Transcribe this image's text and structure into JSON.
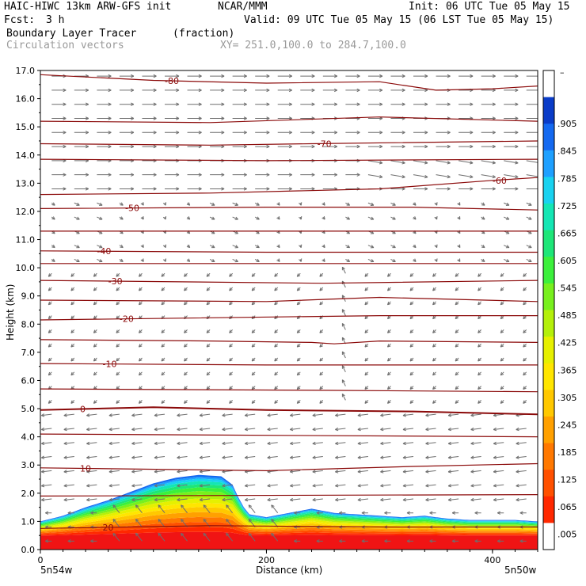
{
  "header": {
    "model": "HAIC-HIWC 13km ARW-GFS init",
    "org": "NCAR/MMM",
    "init": "Init: 06 UTC Tue 05 May 15",
    "fcst_label": "Fcst:",
    "fcst_value": "3 h",
    "valid": "Valid: 09 UTC Tue 05 May 15 (06 LST Tue 05 May 15)",
    "field": "Boundary Layer Tracer",
    "field_units": "(fraction)",
    "overlay": "Circulation vectors",
    "xy": "XY= 251.0,100.0 to 284.7,100.0"
  },
  "chart_data": {
    "type": "heatmap",
    "description_overlays": [
      "contour",
      "vector"
    ],
    "ylabel": "Height (km)",
    "xlabel": "Distance (km)",
    "xlim": [
      0,
      440
    ],
    "ylim": [
      0,
      17
    ],
    "x_ticks": [
      "0",
      "200",
      "400"
    ],
    "y_ticks": [
      "0.0",
      "1.0",
      "2.0",
      "3.0",
      "4.0",
      "5.0",
      "6.0",
      "7.0",
      "8.0",
      "9.0",
      "10.0",
      "11.0",
      "12.0",
      "13.0",
      "14.0",
      "15.0",
      "16.0",
      "17.0"
    ],
    "x_left_label": "5n54w",
    "x_right_label": "5n50w",
    "colorbar_labels": [
      ".005",
      ".065",
      ".125",
      ".185",
      ".245",
      ".305",
      ".365",
      ".425",
      ".485",
      ".545",
      ".605",
      ".665",
      ".725",
      ".785",
      ".845",
      ".905"
    ],
    "colorbar_top_label": "–",
    "colorbar_colors": [
      "#0a3cc8",
      "#1469f0",
      "#1ea0ff",
      "#19d2f0",
      "#14e6b4",
      "#1ee678",
      "#3cf03c",
      "#78f01e",
      "#b4f00a",
      "#e6f000",
      "#ffe600",
      "#ffc800",
      "#ffa000",
      "#ff7800",
      "#ff5000",
      "#ff2800",
      "#f01414"
    ],
    "tracer_top_km": [
      [
        0,
        1.0
      ],
      [
        20,
        1.2
      ],
      [
        40,
        1.5
      ],
      [
        60,
        1.75
      ],
      [
        80,
        2.05
      ],
      [
        100,
        2.35
      ],
      [
        120,
        2.55
      ],
      [
        140,
        2.65
      ],
      [
        160,
        2.6
      ],
      [
        170,
        2.3
      ],
      [
        178,
        1.6
      ],
      [
        185,
        1.25
      ],
      [
        200,
        1.15
      ],
      [
        220,
        1.3
      ],
      [
        240,
        1.45
      ],
      [
        260,
        1.3
      ],
      [
        280,
        1.25
      ],
      [
        300,
        1.2
      ],
      [
        320,
        1.15
      ],
      [
        340,
        1.2
      ],
      [
        360,
        1.1
      ],
      [
        380,
        1.05
      ],
      [
        400,
        1.05
      ],
      [
        420,
        1.05
      ],
      [
        440,
        1.0
      ]
    ],
    "contour_lines": [
      {
        "label": "-80",
        "label_x": 110,
        "y": [
          [
            0,
            16.85
          ],
          [
            100,
            16.65
          ],
          [
            200,
            16.55
          ],
          [
            300,
            16.6
          ],
          [
            350,
            16.3
          ],
          [
            400,
            16.35
          ],
          [
            440,
            16.45
          ]
        ]
      },
      {
        "label": "",
        "label_x": 0,
        "y": [
          [
            0,
            15.2
          ],
          [
            150,
            15.15
          ],
          [
            300,
            15.35
          ],
          [
            440,
            15.2
          ]
        ]
      },
      {
        "label": "-70",
        "label_x": 245,
        "y": [
          [
            0,
            14.4
          ],
          [
            150,
            14.35
          ],
          [
            240,
            14.4
          ],
          [
            440,
            14.5
          ]
        ]
      },
      {
        "label": "",
        "label_x": 0,
        "y": [
          [
            0,
            13.85
          ],
          [
            200,
            13.8
          ],
          [
            440,
            13.85
          ]
        ]
      },
      {
        "label": "-60",
        "label_x": 400,
        "y": [
          [
            0,
            12.6
          ],
          [
            150,
            12.65
          ],
          [
            300,
            12.8
          ],
          [
            400,
            13.1
          ],
          [
            440,
            13.2
          ]
        ]
      },
      {
        "label": "-50",
        "label_x": 75,
        "y": [
          [
            0,
            12.1
          ],
          [
            200,
            12.15
          ],
          [
            330,
            12.15
          ],
          [
            440,
            12.05
          ]
        ]
      },
      {
        "label": "",
        "label_x": 0,
        "y": [
          [
            0,
            11.3
          ],
          [
            440,
            11.3
          ]
        ]
      },
      {
        "label": "-40",
        "label_x": 50,
        "y": [
          [
            0,
            10.6
          ],
          [
            200,
            10.55
          ],
          [
            440,
            10.55
          ]
        ]
      },
      {
        "label": "",
        "label_x": 0,
        "y": [
          [
            0,
            10.15
          ],
          [
            440,
            10.15
          ]
        ]
      },
      {
        "label": "-30",
        "label_x": 60,
        "y": [
          [
            0,
            9.55
          ],
          [
            250,
            9.45
          ],
          [
            440,
            9.55
          ]
        ]
      },
      {
        "label": "",
        "label_x": 0,
        "y": [
          [
            0,
            8.85
          ],
          [
            200,
            8.8
          ],
          [
            300,
            8.95
          ],
          [
            440,
            8.8
          ]
        ]
      },
      {
        "label": "-20",
        "label_x": 70,
        "y": [
          [
            0,
            8.15
          ],
          [
            300,
            8.3
          ],
          [
            440,
            8.3
          ]
        ]
      },
      {
        "label": "",
        "label_x": 0,
        "y": [
          [
            0,
            7.45
          ],
          [
            150,
            7.4
          ],
          [
            240,
            7.35
          ],
          [
            260,
            7.3
          ],
          [
            300,
            7.4
          ],
          [
            440,
            7.35
          ]
        ]
      },
      {
        "label": "-10",
        "label_x": 55,
        "y": [
          [
            0,
            6.6
          ],
          [
            200,
            6.55
          ],
          [
            440,
            6.55
          ]
        ]
      },
      {
        "label": "",
        "label_x": 0,
        "y": [
          [
            0,
            5.7
          ],
          [
            250,
            5.65
          ],
          [
            440,
            5.6
          ]
        ]
      },
      {
        "label": "0",
        "label_x": 35,
        "y": [
          [
            0,
            4.95
          ],
          [
            100,
            5.05
          ],
          [
            200,
            4.95
          ],
          [
            330,
            4.9
          ],
          [
            440,
            4.8
          ]
        ],
        "bold": true
      },
      {
        "label": "",
        "label_x": 0,
        "y": [
          [
            0,
            4.1
          ],
          [
            440,
            4.0
          ]
        ]
      },
      {
        "label": "10",
        "label_x": 35,
        "y": [
          [
            0,
            2.9
          ],
          [
            200,
            2.8
          ],
          [
            330,
            2.95
          ],
          [
            440,
            3.05
          ]
        ]
      },
      {
        "label": "",
        "label_x": 0,
        "y": [
          [
            0,
            1.9
          ],
          [
            440,
            1.95
          ]
        ]
      },
      {
        "label": "20",
        "label_x": 55,
        "y": [
          [
            0,
            0.75
          ],
          [
            150,
            0.85
          ],
          [
            310,
            0.8
          ],
          [
            440,
            0.8
          ]
        ]
      }
    ],
    "contour_color": "#8b0a0a"
  }
}
